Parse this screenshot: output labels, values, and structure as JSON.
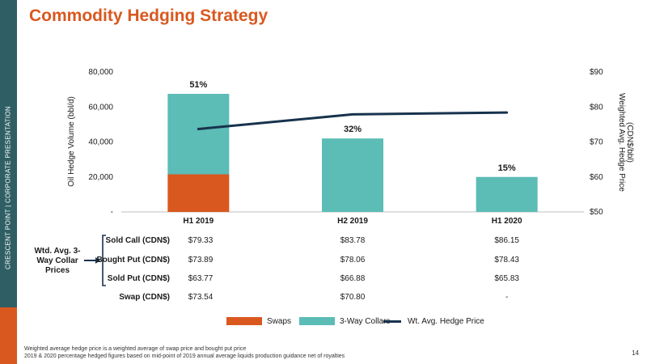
{
  "page": {
    "title": "Commodity Hedging Strategy",
    "side_text": "CRESCENT POINT  |  CORPORATE PRESENTATION",
    "page_number": "14",
    "footnotes": [
      "Weighted average hedge price is a weighted average of swap price and bought put price",
      "2019 & 2020 percentage hedged figures based on mid-point of 2019 annual average liquids production guidance net of royalties"
    ]
  },
  "colors": {
    "swaps": "#d9581f",
    "collars": "#5cbcb6",
    "line": "#17324d",
    "accent": "#d9581f",
    "sidebar": "#2f5f64"
  },
  "chart_data": {
    "type": "bar",
    "title": "",
    "categories": [
      "H1 2019",
      "H2 2019",
      "H1 2020"
    ],
    "series": [
      {
        "name": "Swaps",
        "values": [
          21500,
          0,
          0
        ],
        "axis": "left",
        "kind": "bar"
      },
      {
        "name": "3-Way Collars",
        "values": [
          46000,
          42000,
          20000
        ],
        "axis": "left",
        "kind": "bar"
      },
      {
        "name": "Wt. Avg. Hedge Price",
        "values": [
          73.7,
          77.9,
          78.4
        ],
        "axis": "right",
        "kind": "line"
      }
    ],
    "data_labels": [
      "51%",
      "32%",
      "15%"
    ],
    "ylabel": "Oil Hedge Volume (bbl/d)",
    "ylabel_right": "Weighted Avg. Hedge Price (CDN$/bbl)",
    "ylim": [
      0,
      80000
    ],
    "ylim_right": [
      50,
      90
    ],
    "y_ticks": [
      "-",
      "20,000",
      "40,000",
      "60,000",
      "80,000"
    ],
    "y_tick_values": [
      0,
      20000,
      40000,
      60000,
      80000
    ],
    "y2_ticks": [
      "$50",
      "$60",
      "$70",
      "$80",
      "$90"
    ],
    "y2_tick_values": [
      50,
      60,
      70,
      80,
      90
    ],
    "grid": false,
    "legend": "bottom"
  },
  "table": {
    "group_label": "Wtd. Avg. 3-Way Collar Prices",
    "rows": [
      {
        "label": "Sold Call (CDN$)",
        "values": [
          "$79.33",
          "$83.78",
          "$86.15"
        ]
      },
      {
        "label": "Bought Put (CDN$)",
        "values": [
          "$73.89",
          "$78.06",
          "$78.43"
        ]
      },
      {
        "label": "Sold Put (CDN$)",
        "values": [
          "$63.77",
          "$66.88",
          "$65.83"
        ]
      },
      {
        "label": "Swap (CDN$)",
        "values": [
          "$73.54",
          "$70.80",
          "-"
        ]
      }
    ]
  },
  "legend": {
    "swaps": "Swaps",
    "collars": "3-Way Collars",
    "line": "Wt. Avg. Hedge Price"
  }
}
